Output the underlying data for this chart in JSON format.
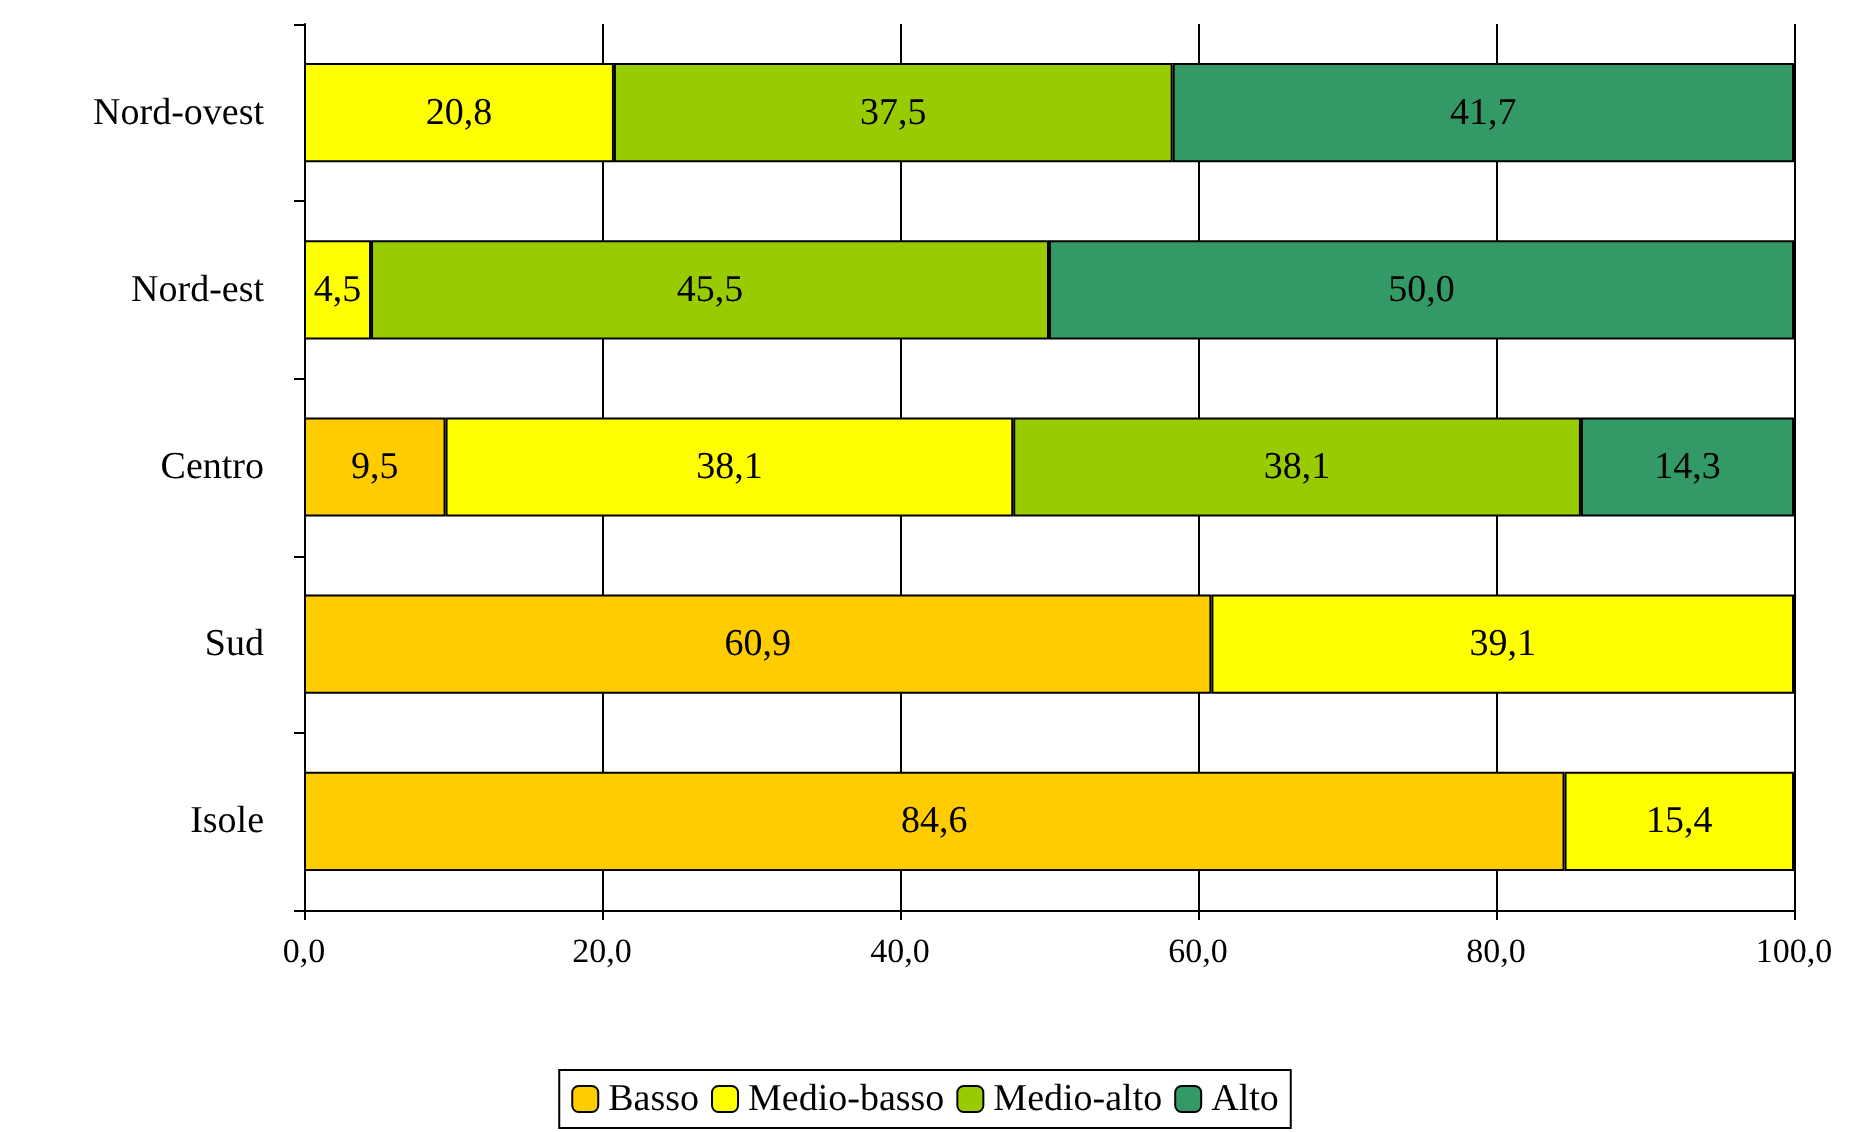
{
  "chart_data": {
    "type": "bar",
    "orientation": "horizontal",
    "stacked": true,
    "categories": [
      "Nord-ovest",
      "Nord-est",
      "Centro",
      "Sud",
      "Isole"
    ],
    "series": [
      {
        "name": "Basso",
        "color": "#ffcc00",
        "values": [
          null,
          null,
          9.5,
          60.9,
          84.6
        ],
        "value_labels": [
          null,
          null,
          "9,5",
          "60,9",
          "84,6"
        ]
      },
      {
        "name": "Medio-basso",
        "color": "#ffff00",
        "values": [
          20.8,
          4.5,
          38.1,
          39.1,
          15.4
        ],
        "value_labels": [
          "20,8",
          "4,5",
          "38,1",
          "39,1",
          "15,4"
        ]
      },
      {
        "name": "Medio-alto",
        "color": "#99cc00",
        "values": [
          37.5,
          45.5,
          38.1,
          null,
          null
        ],
        "value_labels": [
          "37,5",
          "45,5",
          "38,1",
          null,
          null
        ]
      },
      {
        "name": "Alto",
        "color": "#339966",
        "values": [
          41.7,
          50.0,
          14.3,
          null,
          null
        ],
        "value_labels": [
          "41,7",
          "50,0",
          "14,3",
          null,
          null
        ]
      }
    ],
    "xlim": [
      0,
      100
    ],
    "xticks": [
      {
        "value": 0,
        "label": "0,0"
      },
      {
        "value": 20,
        "label": "20,0"
      },
      {
        "value": 40,
        "label": "40,0"
      },
      {
        "value": 60,
        "label": "60,0"
      },
      {
        "value": 80,
        "label": "80,0"
      },
      {
        "value": 100,
        "label": "100,0"
      }
    ],
    "grid": "x",
    "legend": "bottom"
  }
}
